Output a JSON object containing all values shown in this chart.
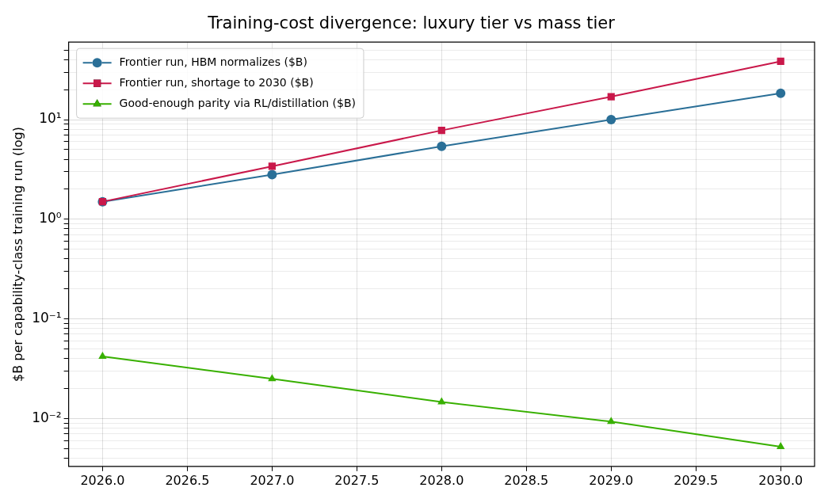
{
  "chart_data": {
    "type": "line",
    "title": "Training-cost divergence: luxury tier vs mass tier",
    "ylabel": "$B per capability-class training run (log)",
    "x": [
      2026,
      2027,
      2028,
      2029,
      2030
    ],
    "series": [
      {
        "name": "Frontier run, HBM normalizes ($B)",
        "color": "#2a6f97",
        "marker": "circle",
        "values": [
          1.5,
          2.8,
          5.4,
          10,
          18.4
        ]
      },
      {
        "name": "Frontier run, shortage to 2030 ($B)",
        "color": "#c9184a",
        "marker": "square",
        "values": [
          1.5,
          3.4,
          7.8,
          17,
          38.5
        ]
      },
      {
        "name": "Good-enough parity via RL/distillation ($B)",
        "color": "#38b000",
        "marker": "triangle",
        "values": [
          0.042,
          0.025,
          0.0146,
          0.0093,
          0.0052
        ]
      }
    ],
    "log": "y",
    "xlim": [
      2025.8,
      2030.2
    ],
    "ylim": [
      0.0033,
      60
    ],
    "xticks": [
      {
        "value": 2026,
        "label": "2026.0"
      },
      {
        "value": 2026.5,
        "label": "2026.5"
      },
      {
        "value": 2027,
        "label": "2027.0"
      },
      {
        "value": 2027.5,
        "label": "2027.5"
      },
      {
        "value": 2028,
        "label": "2028.0"
      },
      {
        "value": 2028.5,
        "label": "2028.5"
      },
      {
        "value": 2029,
        "label": "2029.0"
      },
      {
        "value": 2029.5,
        "label": "2029.5"
      },
      {
        "value": 2030,
        "label": "2030.0"
      }
    ],
    "yticks": [
      {
        "value": 0.004,
        "label": null
      },
      {
        "value": 0.005,
        "label": null
      },
      {
        "value": 0.006,
        "label": null
      },
      {
        "value": 0.007,
        "label": null
      },
      {
        "value": 0.008,
        "label": null
      },
      {
        "value": 0.009,
        "label": null
      },
      {
        "value": 0.01,
        "label": "10⁻²"
      },
      {
        "value": 0.02,
        "label": null
      },
      {
        "value": 0.03,
        "label": null
      },
      {
        "value": 0.04,
        "label": null
      },
      {
        "value": 0.05,
        "label": null
      },
      {
        "value": 0.06,
        "label": null
      },
      {
        "value": 0.07,
        "label": null
      },
      {
        "value": 0.08,
        "label": null
      },
      {
        "value": 0.09,
        "label": null
      },
      {
        "value": 0.1,
        "label": "10⁻¹"
      },
      {
        "value": 0.2,
        "label": null
      },
      {
        "value": 0.3,
        "label": null
      },
      {
        "value": 0.4,
        "label": null
      },
      {
        "value": 0.5,
        "label": null
      },
      {
        "value": 0.6,
        "label": null
      },
      {
        "value": 0.7,
        "label": null
      },
      {
        "value": 0.8,
        "label": null
      },
      {
        "value": 0.9,
        "label": null
      },
      {
        "value": 1,
        "label": "10⁰"
      },
      {
        "value": 2,
        "label": null
      },
      {
        "value": 3,
        "label": null
      },
      {
        "value": 4,
        "label": null
      },
      {
        "value": 5,
        "label": null
      },
      {
        "value": 6,
        "label": null
      },
      {
        "value": 7,
        "label": null
      },
      {
        "value": 8,
        "label": null
      },
      {
        "value": 9,
        "label": null
      },
      {
        "value": 10,
        "label": "10¹"
      },
      {
        "value": 20,
        "label": null
      },
      {
        "value": 30,
        "label": null
      },
      {
        "value": 40,
        "label": null
      },
      {
        "value": 50,
        "label": null
      }
    ],
    "grid": true,
    "legend": "top left",
    "line_style": "solid"
  }
}
